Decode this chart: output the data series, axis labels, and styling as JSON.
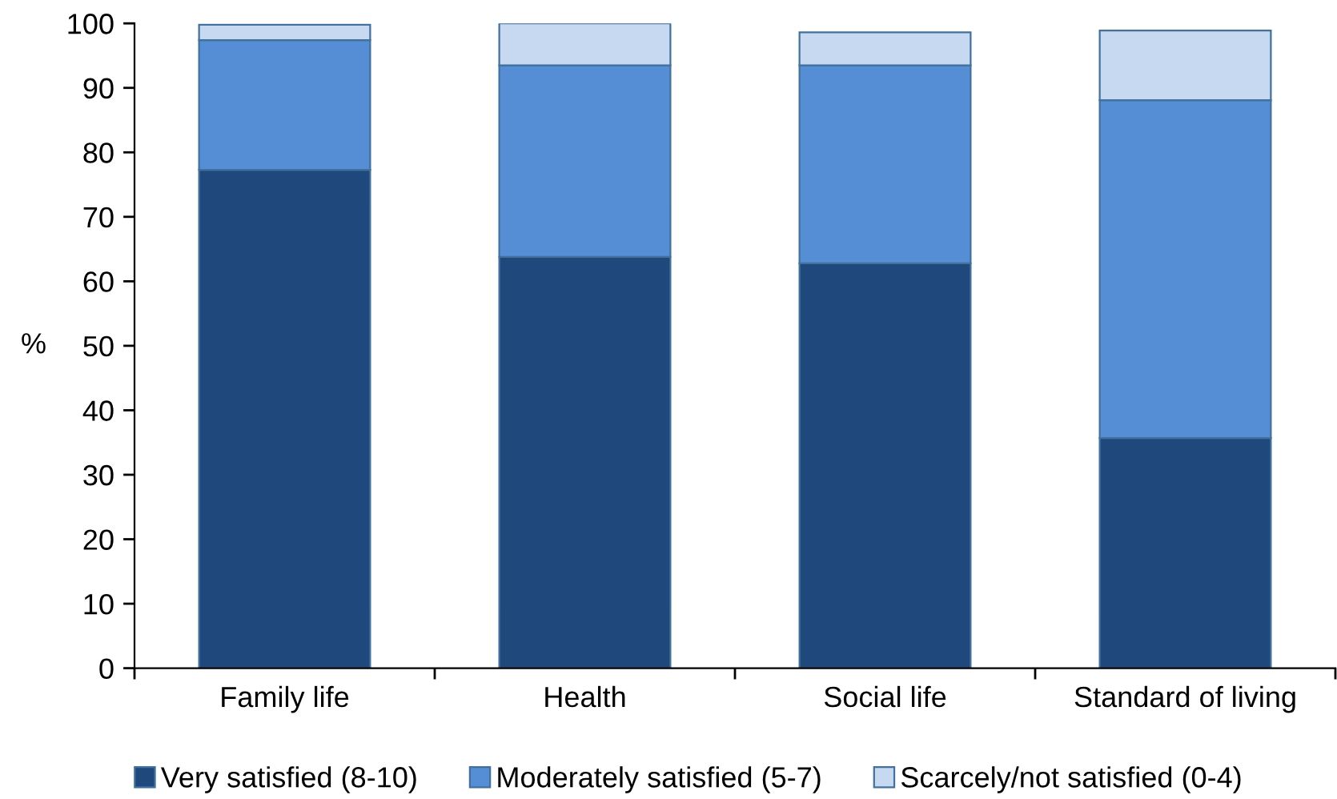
{
  "chart_data": {
    "type": "bar",
    "stacked": true,
    "ylabel": "%",
    "categories": [
      "Family life",
      "Health",
      "Social life",
      "Standard of living"
    ],
    "series": [
      {
        "name": "Very satisfied (8-10)",
        "color": "#1f497d",
        "values": [
          77.3,
          63.8,
          62.8,
          35.7
        ]
      },
      {
        "name": "Moderately satisfied (5-7)",
        "color": "#558ed5",
        "values": [
          20.1,
          29.7,
          30.7,
          52.4
        ]
      },
      {
        "name": "Scarcely/not satisfied (0-4)",
        "color": "#c6d9f1",
        "values": [
          2.4,
          6.5,
          5.1,
          10.8
        ]
      }
    ],
    "ylim": [
      0,
      100
    ],
    "yticks": [
      0,
      10,
      20,
      30,
      40,
      50,
      60,
      70,
      80,
      90,
      100
    ],
    "grid": false,
    "legend": "bottom"
  }
}
